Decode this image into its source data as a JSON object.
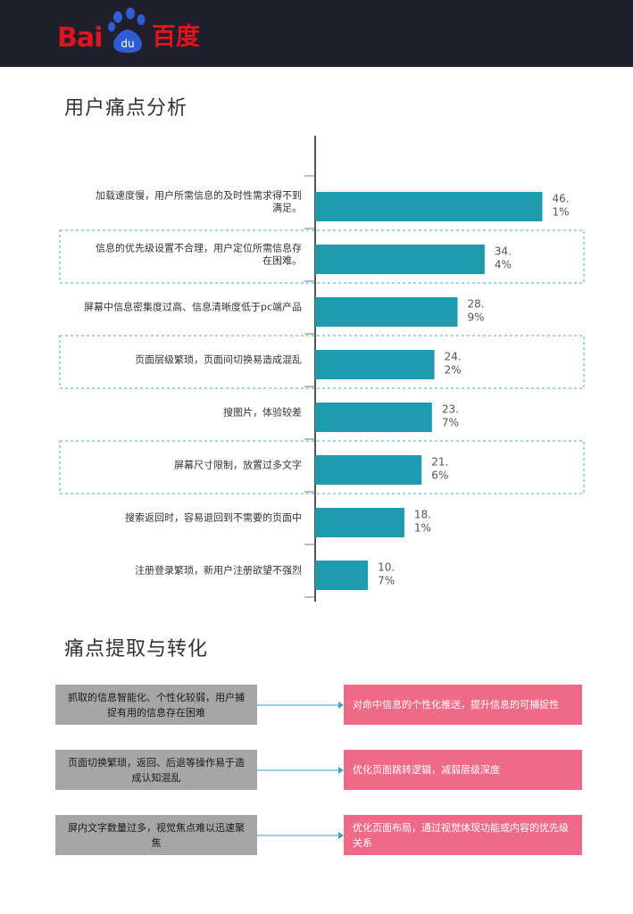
{
  "header": {
    "logo_text_latin": "Bai",
    "logo_text_du": "du",
    "logo_text_cn": "百度",
    "logo_color": "#e0141e",
    "background": "#1f202b"
  },
  "sections": {
    "pain_analysis_title": "用户痛点分析",
    "extraction_title": "痛点提取与转化"
  },
  "chart_data": {
    "type": "bar",
    "orientation": "horizontal",
    "title": "用户痛点分析",
    "bar_color": "#1f9bb0",
    "xlim": [
      0,
      50
    ],
    "categories": [
      [
        "加载速度慢，用户所需信息的及时性需求得不到",
        "满足。"
      ],
      [
        "信息的优先级设置不合理，用户定位所需信息存",
        "在困难。"
      ],
      [
        "屏幕中信息密集度过高、信息清晰度低于pc端产品"
      ],
      [
        "页面层级繁琐，页面间切换易造成混乱"
      ],
      [
        "搜图片，体验较差"
      ],
      [
        "屏幕尺寸限制，放置过多文字"
      ],
      [
        "搜索返回时，容易退回到不需要的页面中"
      ],
      [
        "注册登录繁琐，新用户注册欲望不强烈"
      ]
    ],
    "values": [
      46.1,
      34.4,
      28.9,
      24.2,
      23.7,
      21.6,
      18.1,
      10.7
    ],
    "value_labels": [
      [
        "46.",
        "1%"
      ],
      [
        "34.",
        "4%"
      ],
      [
        "28.",
        "9%"
      ],
      [
        "24.",
        "2%"
      ],
      [
        "23.",
        "7%"
      ],
      [
        "21.",
        "6%"
      ],
      [
        "18.",
        "1%"
      ],
      [
        "10.",
        "7%"
      ]
    ],
    "highlighted": [
      false,
      true,
      false,
      true,
      false,
      true,
      false,
      false
    ],
    "highlight_color": "#4aaac9"
  },
  "flows": [
    {
      "problem": "抓取的信息智能化、个性化较弱，用户捕捉有用的信息存在困难",
      "solution": "对命中信息的个性化推送，提升信息的可捕捉性"
    },
    {
      "problem": "页面切换繁琐，返回、后退等操作易于造成认知混乱",
      "solution": "优化页面跳转逻辑，减弱层级深度"
    },
    {
      "problem": "屏内文字数量过多，视觉焦点难以迅速聚焦",
      "solution": "优化页面布局，通过视觉体现功能或内容的优先级关系"
    }
  ],
  "colors": {
    "problem_box": "#a6a6a6",
    "solution_box": "#ef6a87",
    "arrow": "#3aa6c2"
  }
}
